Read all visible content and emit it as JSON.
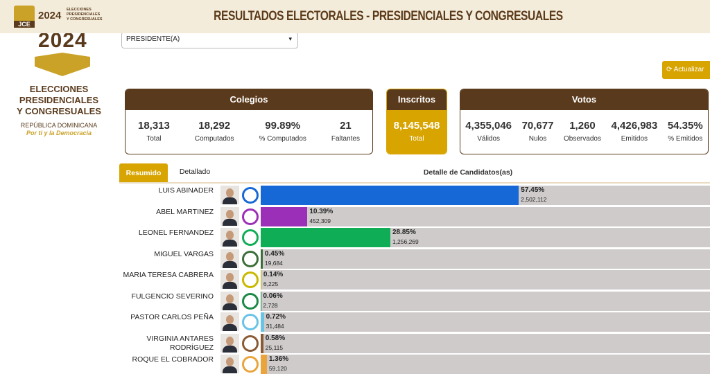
{
  "header": {
    "title": "RESULTADOS ELECTORALES - PRESIDENCIALES Y CONGRESUALES",
    "logo": {
      "org": "JCE",
      "year": "2024",
      "lines": [
        "ELECCIONES",
        "PRESIDENCIALES",
        "Y CONGRESUALES"
      ]
    }
  },
  "sidebar": {
    "year": "2024",
    "lines": [
      "ELECCIONES",
      "PRESIDENCIALES",
      "Y CONGRESUALES"
    ],
    "country": "REPÚBLICA DOMINICANA",
    "slogan": "Por ti y la Democracia"
  },
  "filter": {
    "selected": "PRESIDENTE(A)"
  },
  "refresh_button": "Actualizar",
  "summary": {
    "colegios": {
      "title": "Colegios",
      "stats": [
        {
          "value": "18,313",
          "label": "Total"
        },
        {
          "value": "18,292",
          "label": "Computados"
        },
        {
          "value": "99.89%",
          "label": "% Computados"
        },
        {
          "value": "21",
          "label": "Faltantes"
        }
      ]
    },
    "inscritos": {
      "title": "Inscritos",
      "stats": [
        {
          "value": "8,145,548",
          "label": "Total"
        }
      ]
    },
    "votos": {
      "title": "Votos",
      "stats": [
        {
          "value": "4,355,046",
          "label": "Válidos"
        },
        {
          "value": "70,677",
          "label": "Nulos"
        },
        {
          "value": "1,260",
          "label": "Observados"
        },
        {
          "value": "4,426,983",
          "label": "Emitidos"
        },
        {
          "value": "54.35%",
          "label": "% Emitidos"
        }
      ]
    }
  },
  "tabs": [
    "Resumido",
    "Detallado"
  ],
  "detail_title": "Detalle de Candidatos(as)",
  "candidates": [
    {
      "name": "LUIS ABINADER",
      "percent": 57.45,
      "percent_label": "57.45%",
      "votes": "2,502,112",
      "color": "#1668d6"
    },
    {
      "name": "ABEL MARTINEZ",
      "percent": 10.39,
      "percent_label": "10.39%",
      "votes": "452,309",
      "color": "#9c2fb8"
    },
    {
      "name": "LEONEL FERNANDEZ",
      "percent": 28.85,
      "percent_label": "28.85%",
      "votes": "1,256,269",
      "color": "#10ad57"
    },
    {
      "name": "MIGUEL VARGAS",
      "percent": 0.45,
      "percent_label": "0.45%",
      "votes": "19,684",
      "color": "#3d6e3a"
    },
    {
      "name": "MARIA TERESA CABRERA",
      "percent": 0.14,
      "percent_label": "0.14%",
      "votes": "6,225",
      "color": "#c9b800"
    },
    {
      "name": "FULGENCIO SEVERINO",
      "percent": 0.06,
      "percent_label": "0.06%",
      "votes": "2,728",
      "color": "#1b8a45"
    },
    {
      "name": "PASTOR CARLOS PEÑA",
      "percent": 0.72,
      "percent_label": "0.72%",
      "votes": "31,484",
      "color": "#69c3e6"
    },
    {
      "name": "VIRGINIA ANTARES RODRÍGUEZ",
      "percent": 0.58,
      "percent_label": "0.58%",
      "votes": "25,115",
      "color": "#8a5a33"
    },
    {
      "name": "ROQUE EL COBRADOR",
      "percent": 1.36,
      "percent_label": "1.36%",
      "votes": "59,120",
      "color": "#e9a53c"
    }
  ]
}
